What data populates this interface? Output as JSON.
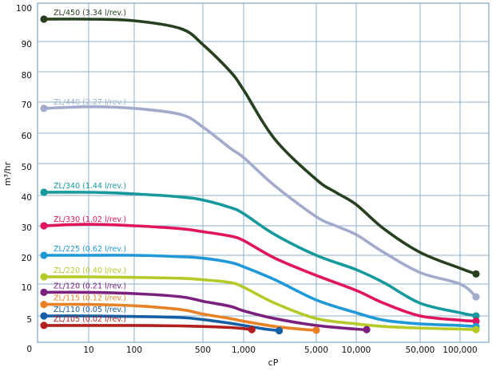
{
  "chart_data": {
    "type": "line",
    "title": "",
    "xlabel": "cP",
    "ylabel": "m³/hr",
    "x_scale": "log",
    "grid": true,
    "legend": "inline-labels-left",
    "x_ticks": [
      "10",
      "100",
      "500",
      "1,000",
      "5,000",
      "10,000",
      "50,000",
      "100,000"
    ],
    "x_tick_values": [
      10,
      100,
      500,
      1000,
      5000,
      10000,
      50000,
      100000
    ],
    "y_ticks": [
      "0",
      "5",
      "10",
      "20",
      "30",
      "40",
      "50",
      "60",
      "70",
      "80",
      "90",
      "100"
    ],
    "y_tick_values": [
      0,
      5,
      10,
      20,
      30,
      40,
      50,
      60,
      70,
      80,
      90,
      100
    ],
    "xlim": [
      1,
      150000
    ],
    "ylim": [
      0,
      100
    ],
    "series": [
      {
        "name": "ZL/450 (3.34 l/rev.)",
        "color": "#27401f",
        "x": [
          1.5,
          10,
          100,
          300,
          500,
          800,
          1000,
          2000,
          5000,
          7000,
          10000,
          20000,
          50000,
          100000,
          140000
        ],
        "y": [
          97,
          97,
          96.5,
          94,
          89,
          80,
          74,
          58,
          45,
          41,
          37,
          29,
          21,
          15.5,
          13.5
        ]
      },
      {
        "name": "ZL/440 (2.27 l/rev.)",
        "color": "#a2abcb",
        "x": [
          1.5,
          10,
          100,
          300,
          500,
          800,
          1000,
          2000,
          5000,
          7000,
          10000,
          20000,
          50000,
          100000,
          140000
        ],
        "y": [
          68,
          68.5,
          68,
          66,
          62,
          55,
          52,
          43,
          33,
          30,
          27,
          21,
          14,
          10,
          8
        ]
      },
      {
        "name": "ZL/340 (1.44 l/rev.)",
        "color": "#16999c",
        "x": [
          1.5,
          10,
          100,
          300,
          500,
          800,
          1000,
          2000,
          5000,
          10000,
          20000,
          50000,
          100000,
          140000
        ],
        "y": [
          41,
          41,
          40.5,
          39.5,
          38.5,
          36,
          34,
          27,
          20,
          15,
          10.5,
          7,
          5.5,
          5
        ]
      },
      {
        "name": "ZL/330 (1.02 l/rev.)",
        "color": "#e0155e",
        "x": [
          1.5,
          10,
          100,
          300,
          500,
          800,
          1000,
          2000,
          5000,
          10000,
          20000,
          50000,
          100000,
          140000
        ],
        "y": [
          30,
          30.5,
          30,
          29,
          28,
          26.5,
          25,
          19,
          13,
          9,
          7,
          5,
          4.2,
          4
        ]
      },
      {
        "name": "ZL/225 (0.62 l/rev.)",
        "color": "#1f98d8",
        "x": [
          1.5,
          10,
          100,
          300,
          500,
          800,
          1000,
          2000,
          5000,
          10000,
          20000,
          50000,
          100000,
          140000
        ],
        "y": [
          20,
          20,
          20,
          19.5,
          19,
          17.5,
          16,
          11.5,
          7.5,
          5.5,
          4.2,
          3.5,
          3.2,
          3
        ]
      },
      {
        "name": "ZL/220 (0.40 l/rev.)",
        "color": "#b5c928",
        "x": [
          1.5,
          10,
          100,
          300,
          500,
          800,
          1000,
          2000,
          5000,
          10000,
          20000,
          50000,
          100000,
          140000
        ],
        "y": [
          12.5,
          12.5,
          12.3,
          12,
          11.5,
          10.5,
          9.5,
          7,
          4.5,
          3.5,
          3,
          2.7,
          2.5,
          2.4
        ]
      },
      {
        "name": "ZL/120 (0.21 l/rev.)",
        "color": "#7b207c",
        "x": [
          1.5,
          10,
          100,
          300,
          500,
          800,
          1000,
          2000,
          5000,
          10000,
          13000
        ],
        "y": [
          8.7,
          8.7,
          8.5,
          8,
          7.3,
          6.5,
          5.8,
          4.5,
          3.2,
          2.5,
          2.4
        ]
      },
      {
        "name": "ZL/115 (0.12 l/rev.)",
        "color": "#e88125",
        "x": [
          1.5,
          10,
          100,
          300,
          500,
          800,
          1000,
          2000,
          4000,
          5000
        ],
        "y": [
          6.8,
          6.8,
          6.6,
          6,
          5.3,
          4.5,
          4,
          3,
          2.4,
          2.3
        ]
      },
      {
        "name": "ZL/110 (0.05 l/rev.)",
        "color": "#145fa5",
        "x": [
          1.5,
          10,
          100,
          300,
          500,
          800,
          1000,
          1500,
          2200
        ],
        "y": [
          5,
          5,
          4.9,
          4.7,
          4.3,
          3.6,
          3.2,
          2.6,
          2.2
        ]
      },
      {
        "name": "ZL/105 (0.02 l/rev.)",
        "color": "#b11f1f",
        "x": [
          1.5,
          10,
          100,
          300,
          500,
          800,
          1000,
          1200
        ],
        "y": [
          3.2,
          3.2,
          3.2,
          3.1,
          3,
          2.8,
          2.6,
          2.4
        ]
      }
    ]
  }
}
